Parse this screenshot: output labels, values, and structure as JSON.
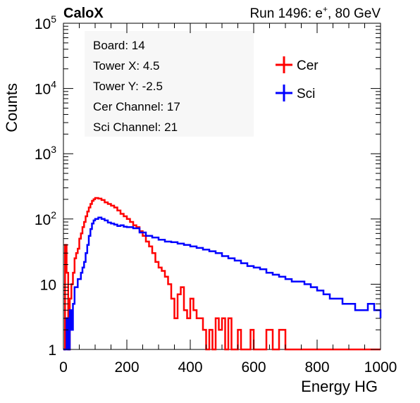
{
  "header": {
    "brand": "CaloX",
    "run_prefix": "Run 1496: e",
    "run_sup": "+",
    "run_suffix": ", 80 GeV"
  },
  "info_box": {
    "lines": [
      "Board: 14",
      "Tower X: 4.5",
      "Tower Y: -2.5",
      "Cer Channel: 17",
      "Sci Channel: 21"
    ]
  },
  "chart_data": {
    "type": "line",
    "xlabel": "Energy HG",
    "ylabel": "Counts",
    "xlim": [
      0,
      1000
    ],
    "ylim": [
      1,
      100000
    ],
    "y_scale": "log",
    "grid": false,
    "legend_position": "top-right",
    "x_ticks": [
      {
        "value": 0,
        "label": "0"
      },
      {
        "value": 200,
        "label": "200"
      },
      {
        "value": 400,
        "label": "400"
      },
      {
        "value": 600,
        "label": "600"
      },
      {
        "value": 800,
        "label": "800"
      },
      {
        "value": 1000,
        "label": "1000"
      }
    ],
    "y_ticks": [
      {
        "value": 1,
        "base": "1",
        "exp": ""
      },
      {
        "value": 10,
        "base": "10",
        "exp": ""
      },
      {
        "value": 100,
        "base": "10",
        "exp": "2"
      },
      {
        "value": 1000,
        "base": "10",
        "exp": "3"
      },
      {
        "value": 10000,
        "base": "10",
        "exp": "4"
      },
      {
        "value": 100000,
        "base": "10",
        "exp": "5"
      }
    ],
    "series": [
      {
        "name": "Cer",
        "color": "#ff0000",
        "x": [
          0,
          5,
          10,
          15,
          20,
          25,
          30,
          35,
          40,
          45,
          50,
          55,
          60,
          65,
          70,
          75,
          80,
          85,
          90,
          95,
          100,
          110,
          120,
          130,
          140,
          150,
          160,
          170,
          180,
          190,
          200,
          210,
          220,
          230,
          240,
          250,
          260,
          270,
          280,
          290,
          300,
          310,
          320,
          330,
          340,
          350,
          360,
          370,
          380,
          390,
          400,
          410,
          420,
          430,
          440,
          450,
          460,
          470,
          480,
          490,
          500,
          510,
          520,
          530,
          540,
          550,
          560,
          570,
          580,
          590,
          600,
          620,
          640,
          660,
          680,
          700,
          720,
          740,
          760,
          780,
          800,
          850,
          900,
          950,
          1000
        ],
        "y": [
          1,
          40,
          15,
          1,
          6,
          10,
          15,
          25,
          30,
          35,
          50,
          60,
          75,
          90,
          110,
          130,
          150,
          170,
          190,
          200,
          210,
          205,
          195,
          180,
          170,
          160,
          150,
          135,
          120,
          110,
          100,
          90,
          80,
          75,
          65,
          55,
          45,
          38,
          30,
          22,
          18,
          16,
          13,
          10,
          6,
          3,
          7,
          9,
          4,
          3,
          6,
          4,
          3,
          3,
          2,
          1,
          2,
          1,
          3,
          2,
          3,
          1,
          3,
          1,
          1,
          2,
          1,
          1,
          1,
          2,
          1,
          1,
          2,
          1,
          2,
          1,
          1,
          1,
          1,
          1,
          1,
          1,
          1,
          1,
          1
        ]
      },
      {
        "name": "Sci",
        "color": "#0000ff",
        "x": [
          0,
          5,
          10,
          15,
          20,
          25,
          30,
          35,
          40,
          45,
          50,
          55,
          60,
          65,
          70,
          75,
          80,
          85,
          90,
          95,
          100,
          110,
          120,
          130,
          140,
          150,
          160,
          170,
          180,
          190,
          200,
          220,
          240,
          260,
          280,
          300,
          320,
          340,
          360,
          380,
          400,
          420,
          440,
          460,
          480,
          500,
          520,
          540,
          560,
          580,
          600,
          620,
          640,
          660,
          680,
          700,
          720,
          740,
          760,
          780,
          800,
          820,
          840,
          860,
          880,
          900,
          920,
          940,
          960,
          980,
          1000
        ],
        "y": [
          1,
          1,
          3,
          1,
          4,
          2,
          5,
          9,
          9,
          12,
          12,
          15,
          18,
          22,
          30,
          40,
          55,
          70,
          85,
          95,
          100,
          105,
          100,
          95,
          88,
          85,
          82,
          78,
          80,
          76,
          75,
          72,
          62,
          55,
          52,
          48,
          45,
          44,
          42,
          40,
          38,
          36,
          34,
          32,
          30,
          27,
          25,
          23,
          21,
          19,
          18,
          17,
          15,
          14,
          13,
          12,
          11,
          11,
          10,
          9,
          8,
          7,
          6,
          6,
          5,
          5,
          4,
          4,
          5,
          4,
          3
        ]
      }
    ]
  }
}
